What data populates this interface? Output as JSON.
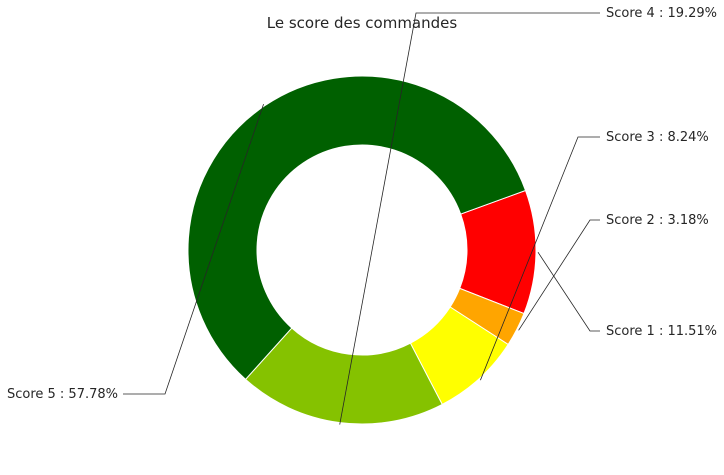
{
  "chart_data": {
    "type": "pie",
    "variant": "donut",
    "title": "Le score des commandes",
    "start_angle_deg": 20,
    "direction": "clockwise",
    "legend": "none",
    "slices": [
      {
        "name": "Score 1",
        "value": 11.51,
        "label": "Score 1 : 11.51%",
        "color": "#ff0000"
      },
      {
        "name": "Score 2",
        "value": 3.18,
        "label": "Score 2 : 3.18%",
        "color": "#ffa500"
      },
      {
        "name": "Score 3",
        "value": 8.24,
        "label": "Score 3 : 8.24%",
        "color": "#ffff00"
      },
      {
        "name": "Score 4",
        "value": 19.29,
        "label": "Score 4 : 19.29%",
        "color": "#85c200"
      },
      {
        "name": "Score 5",
        "value": 57.78,
        "label": "Score 5 : 57.78%",
        "color": "#006000"
      }
    ]
  }
}
